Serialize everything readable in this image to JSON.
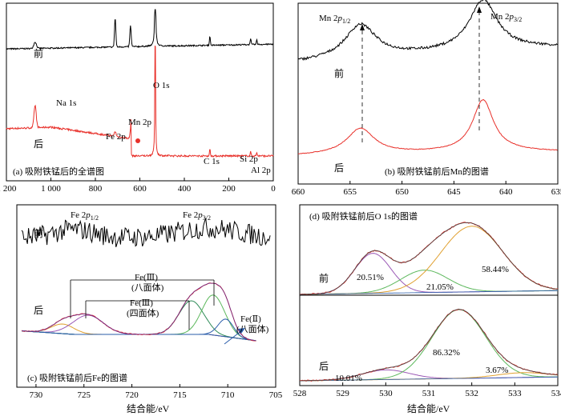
{
  "chart_data": [
    {
      "type": "line",
      "panel_label": "(a) 吸附铁锰后的全谱图",
      "x_ticks": [
        "1 200",
        "1 000",
        "800",
        "600",
        "400",
        "200",
        "0"
      ],
      "xlim": [
        1200,
        0
      ],
      "series": [
        {
          "name": "前",
          "color": "#000000"
        },
        {
          "name": "后",
          "color": "#e8302a"
        }
      ],
      "annotations": [
        "Na 1s",
        "O 1s",
        "Fe 2p",
        "Mn 2p",
        "C 1s",
        "Si 2p",
        "Al 2p"
      ],
      "peaks": [
        1071,
        711,
        642,
        531,
        285,
        102,
        74
      ]
    },
    {
      "type": "line",
      "panel_label": "(b) 吸附铁锰前后Mn的图谱",
      "x_ticks": [
        "660",
        "655",
        "650",
        "645",
        "640",
        "635"
      ],
      "xlim": [
        660,
        635
      ],
      "series": [
        {
          "name": "前",
          "color": "#000000"
        },
        {
          "name": "后",
          "color": "#e8302a"
        }
      ],
      "annotations": [
        "Mn 2p1/2",
        "Mn 2p3/2"
      ],
      "peaks": [
        654.0,
        642.2
      ]
    },
    {
      "type": "line",
      "panel_label": "(c) 吸附铁锰前后Fe的图谱",
      "x_ticks": [
        "730",
        "725",
        "720",
        "715",
        "710",
        "705"
      ],
      "xlim": [
        732,
        705
      ],
      "xlabel": "结合能/eV",
      "series": [
        {
          "name": "前",
          "color": "#000000"
        },
        {
          "name": "后",
          "color": "#e8302a"
        }
      ],
      "annotations": [
        "Fe 2p1/2",
        "Fe 2p3/2",
        "Fe(Ⅲ)",
        "(八面体)",
        "Fe(Ⅲ)",
        "(四面体)",
        "Fe(Ⅱ)",
        "(八面体)"
      ],
      "components": [
        {
          "center": 727.2,
          "color": "#e0a030"
        },
        {
          "center": 724.6,
          "color": "#9b59b6"
        },
        {
          "center": 713.8,
          "color": "#2e8b57"
        },
        {
          "center": 711.5,
          "color": "#5cb85c"
        },
        {
          "center": 710.2,
          "color": "#2a5caa"
        }
      ]
    },
    {
      "type": "line",
      "panel_label": "(d) 吸附铁锰前后O 1s的图谱",
      "x_ticks": [
        "528",
        "529",
        "530",
        "531",
        "532",
        "533",
        "534"
      ],
      "xlim": [
        528,
        534
      ],
      "xlabel": "结合能/eV",
      "series": [
        {
          "name": "前",
          "color": "#000000"
        },
        {
          "name": "后",
          "color": "#000000"
        }
      ],
      "components_before": [
        {
          "center": 529.7,
          "label": "20.51%",
          "color": "#9b59b6"
        },
        {
          "center": 530.9,
          "label": "21.05%",
          "color": "#5cb85c"
        },
        {
          "center": 532.0,
          "label": "58.44%",
          "color": "#e0a030"
        }
      ],
      "components_after": [
        {
          "center": 530.0,
          "label": "10.01%",
          "color": "#9b59b6"
        },
        {
          "center": 531.7,
          "label": "86.32%",
          "color": "#5cb85c"
        },
        {
          "center": 533.2,
          "label": "3.67%",
          "color": "#e0a030"
        }
      ]
    }
  ],
  "labels": {
    "before": "前",
    "after": "后"
  }
}
